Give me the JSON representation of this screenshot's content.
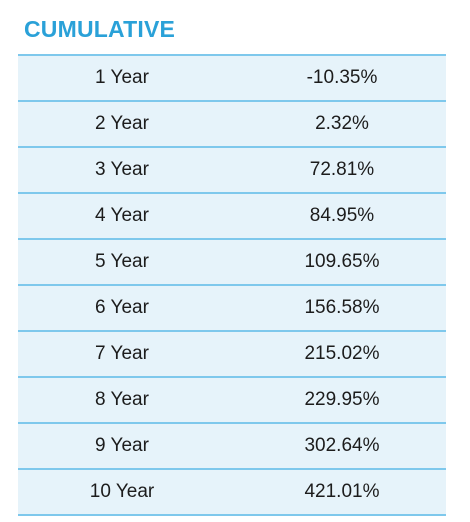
{
  "title": "CUMULATIVE",
  "rows": [
    {
      "period": "1 Year",
      "value": "-10.35%"
    },
    {
      "period": "2 Year",
      "value": "2.32%"
    },
    {
      "period": "3 Year",
      "value": "72.81%"
    },
    {
      "period": "4 Year",
      "value": "84.95%"
    },
    {
      "period": "5 Year",
      "value": "109.65%"
    },
    {
      "period": "6 Year",
      "value": "156.58%"
    },
    {
      "period": "7 Year",
      "value": "215.02%"
    },
    {
      "period": "8 Year",
      "value": "229.95%"
    },
    {
      "period": "9 Year",
      "value": "302.64%"
    },
    {
      "period": "10 Year",
      "value": "421.01%"
    }
  ],
  "colors": {
    "accent": "#2aa1d8",
    "row_background": "#e6f3fa",
    "row_border": "#7ec8ec",
    "text": "#1c1c1c"
  }
}
